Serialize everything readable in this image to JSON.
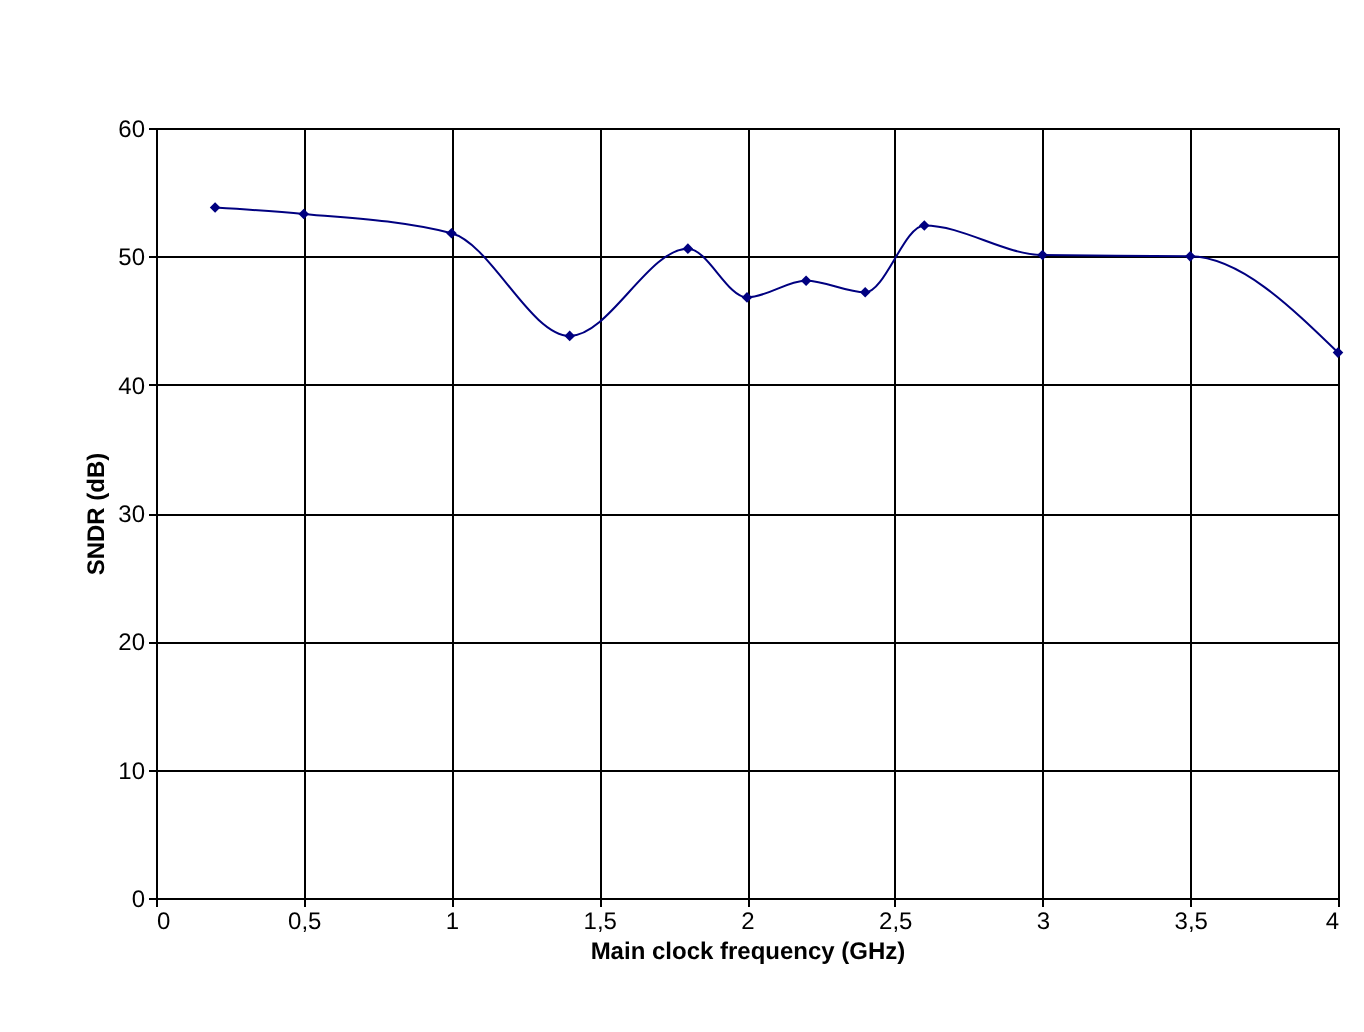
{
  "chart_data": {
    "type": "line",
    "xlabel": "Main clock frequency (GHz)",
    "ylabel": "SNDR (dB)",
    "x": [
      0.2,
      0.5,
      1,
      1.4,
      1.8,
      2,
      2.2,
      2.4,
      2.6,
      3,
      3.5,
      4
    ],
    "series": [
      {
        "color": "#000080",
        "values": [
          53.8,
          53.3,
          51.8,
          43.8,
          50.6,
          46.8,
          48.1,
          47.2,
          52.4,
          50.1,
          50.0,
          42.5
        ]
      }
    ],
    "xlim": [
      0,
      4
    ],
    "xticks": [
      0,
      {
        "value": 0.5,
        "label": "0,5"
      },
      1,
      {
        "value": 1.5,
        "label": "1,5"
      },
      2,
      {
        "value": 2.5,
        "label": "2,5"
      },
      3,
      {
        "value": 3.5,
        "label": "3,5"
      },
      4
    ],
    "ylim": [
      0,
      60
    ],
    "yticks": [
      0,
      10,
      20,
      30,
      40,
      50,
      60
    ],
    "grid": true,
    "marker": "diamond",
    "line_style": "solid"
  }
}
